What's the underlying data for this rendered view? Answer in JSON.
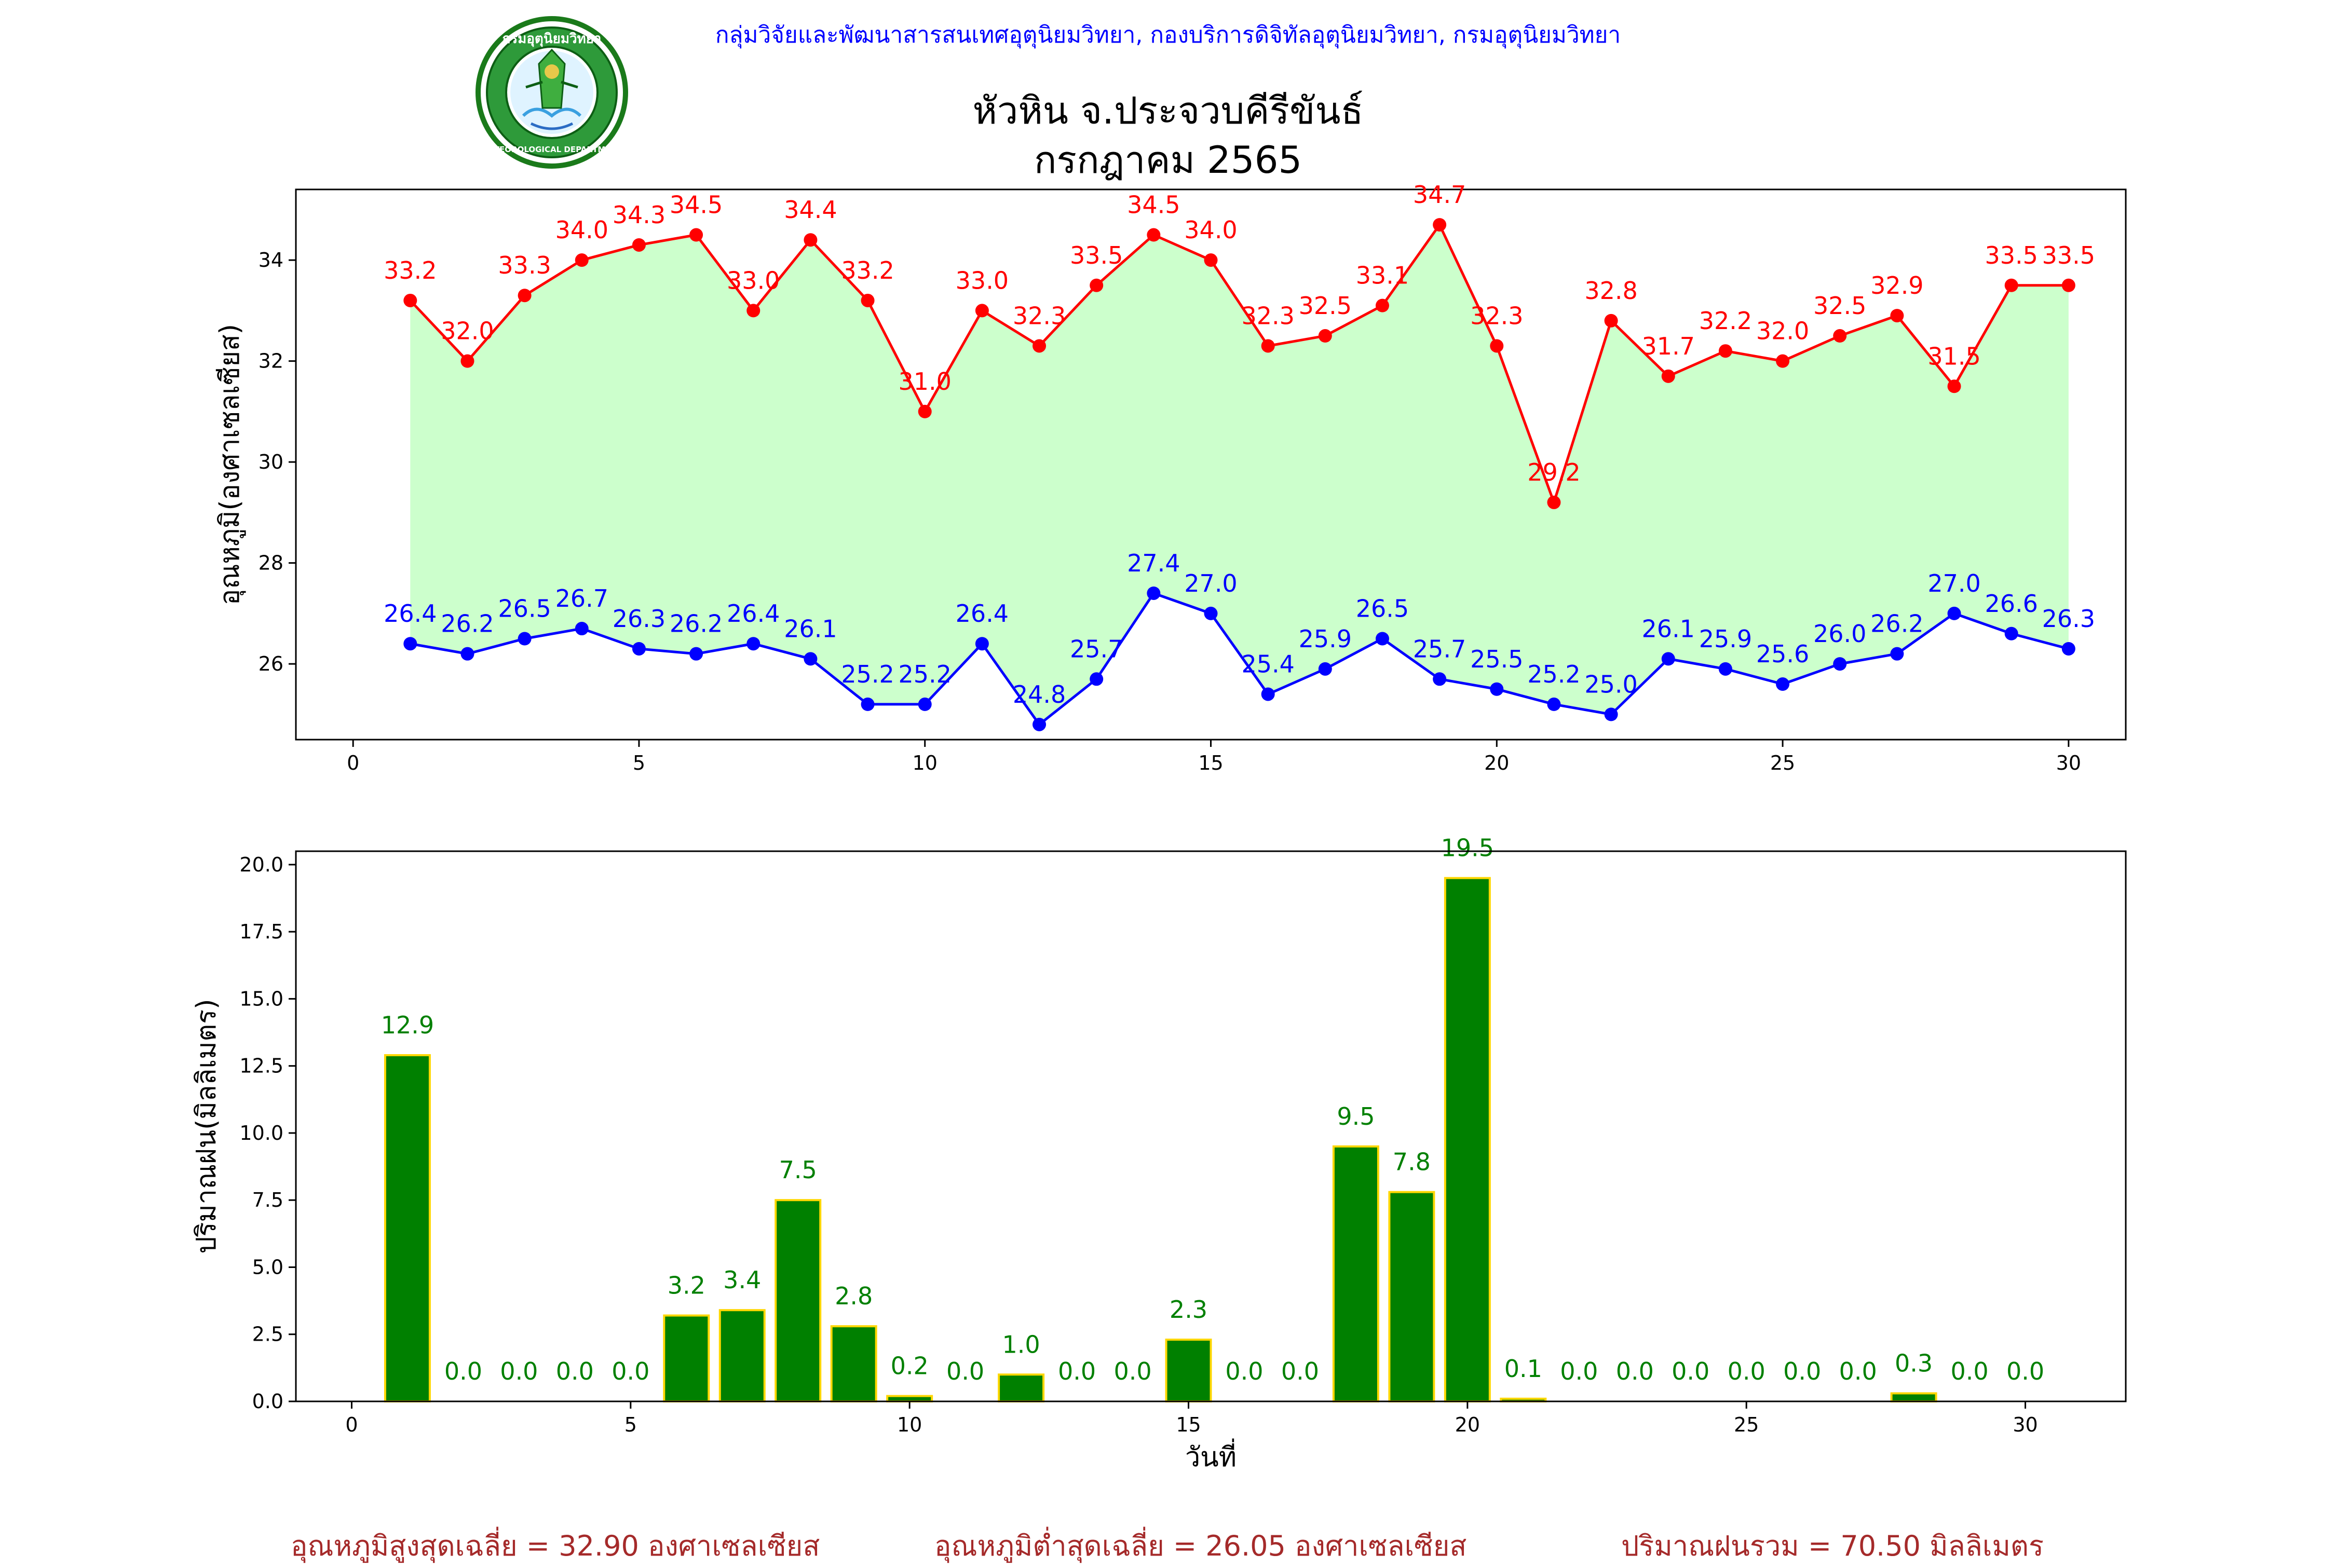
{
  "header": {
    "department": "กลุ่มวิจัยและพัฒนาสารสนเทศอุตุนิยมวิทยา, กองบริการดิจิทัลอุตุนิยมวิทยา, กรมอุตุนิยมวิทยา",
    "title_line1": "หัวหิน จ.ประจวบคีรีขันธ์",
    "title_line2": "กรกฎาคม 2565",
    "logo_text_top": "กรมอุตุนิยมวิทยา",
    "logo_text_bottom": "METEOROLOGICAL DEPARTMENT"
  },
  "colors": {
    "max_line": "#ff0000",
    "min_line": "#0000ff",
    "fill_between": "#ccffcc",
    "bar_fill": "#008000",
    "bar_edge": "#ffd700",
    "bar_label": "#008000",
    "header_text": "#0000ff",
    "footer_text": "#a52a2a"
  },
  "chart_data": [
    {
      "type": "line",
      "ylabel": "อุณหภูมิ(องศาเซลเซียส)",
      "xlabel": "",
      "xlim": [
        -1,
        31
      ],
      "ylim": [
        24.5,
        35.4
      ],
      "xticks": [
        0,
        5,
        10,
        15,
        20,
        25,
        30
      ],
      "yticks": [
        26,
        28,
        30,
        32,
        34
      ],
      "x": [
        1,
        2,
        3,
        4,
        5,
        6,
        7,
        8,
        9,
        10,
        11,
        12,
        13,
        14,
        15,
        16,
        17,
        18,
        19,
        20,
        21,
        22,
        23,
        24,
        25,
        26,
        27,
        28,
        29,
        30
      ],
      "series": [
        {
          "values": [
            33.2,
            32.0,
            33.3,
            34.0,
            34.3,
            34.5,
            33.0,
            34.4,
            33.2,
            31.0,
            33.0,
            32.3,
            33.5,
            34.5,
            34.0,
            32.3,
            32.5,
            33.1,
            34.7,
            32.3,
            29.2,
            32.8,
            31.7,
            32.2,
            32.0,
            32.5,
            32.9,
            31.5,
            33.5,
            33.5
          ],
          "labels": [
            "33.2",
            "32.0",
            "33.3",
            "34.0",
            "34.3",
            "34.5",
            "33.0",
            "34.4",
            "33.2",
            "31.0",
            "33.0",
            "32.3",
            "33.5",
            "34.5",
            "34.0",
            "32.3",
            "32.5",
            "33.1",
            "34.7",
            "32.3",
            "29.2",
            "32.8",
            "31.7",
            "32.2",
            "32.0",
            "32.5",
            "32.9",
            "31.5",
            "33.5",
            "33.5"
          ]
        },
        {
          "values": [
            26.4,
            26.2,
            26.5,
            26.7,
            26.3,
            26.2,
            26.4,
            26.1,
            25.2,
            25.2,
            26.4,
            24.8,
            25.7,
            27.4,
            27.0,
            25.4,
            25.9,
            26.5,
            25.7,
            25.5,
            25.2,
            25.0,
            26.1,
            25.9,
            25.6,
            26.0,
            26.2,
            27.0,
            26.6,
            26.3
          ],
          "labels": [
            "26.4",
            "26.2",
            "26.5",
            "26.7",
            "26.3",
            "26.2",
            "26.4",
            "26.1",
            "25.2",
            "25.2",
            "26.4",
            "24.8",
            "25.7",
            "27.4",
            "27.0",
            "25.4",
            "25.9",
            "26.5",
            "25.7",
            "25.5",
            "25.2",
            "25.0",
            "26.1",
            "25.9",
            "25.6",
            "26.0",
            "26.2",
            "27.0",
            "26.6",
            "26.3"
          ]
        }
      ]
    },
    {
      "type": "bar",
      "ylabel": "ปริมาณฝน(มิลลิเมตร)",
      "xlabel": "วันที่",
      "xlim": [
        -1,
        31.8
      ],
      "ylim": [
        0,
        20.5
      ],
      "xticks": [
        0,
        5,
        10,
        15,
        20,
        25,
        30
      ],
      "yticks": [
        0.0,
        2.5,
        5.0,
        7.5,
        10.0,
        12.5,
        15.0,
        17.5,
        20.0
      ],
      "ytick_labels": [
        "0.0",
        "2.5",
        "5.0",
        "7.5",
        "10.0",
        "12.5",
        "15.0",
        "17.5",
        "20.0"
      ],
      "x": [
        1,
        2,
        3,
        4,
        5,
        6,
        7,
        8,
        9,
        10,
        11,
        12,
        13,
        14,
        15,
        16,
        17,
        18,
        19,
        20,
        21,
        22,
        23,
        24,
        25,
        26,
        27,
        28,
        29,
        30
      ],
      "values": [
        12.9,
        0.0,
        0.0,
        0.0,
        0.0,
        3.2,
        3.4,
        7.5,
        2.8,
        0.2,
        0.0,
        1.0,
        0.0,
        0.0,
        2.3,
        0.0,
        0.0,
        9.5,
        7.8,
        19.5,
        0.1,
        0.0,
        0.0,
        0.0,
        0.0,
        0.0,
        0.0,
        0.3,
        0.0,
        0.0
      ],
      "labels": [
        "12.9",
        "0.0",
        "0.0",
        "0.0",
        "0.0",
        "3.2",
        "3.4",
        "7.5",
        "2.8",
        "0.2",
        "0.0",
        "1.0",
        "0.0",
        "0.0",
        "2.3",
        "0.0",
        "0.0",
        "9.5",
        "7.8",
        "19.5",
        "0.1",
        "0.0",
        "0.0",
        "0.0",
        "0.0",
        "0.0",
        "0.0",
        "0.3",
        "0.0",
        "0.0"
      ]
    }
  ],
  "footer": {
    "avg_max": "อุณหภูมิสูงสุดเฉลี่ย = 32.90 องศาเซลเซียส",
    "avg_min": "อุณหภูมิต่ำสุดเฉลี่ย = 26.05 องศาเซลเซียส",
    "total_rain": "ปริมาณฝนรวม = 70.50 มิลลิเมตร"
  }
}
